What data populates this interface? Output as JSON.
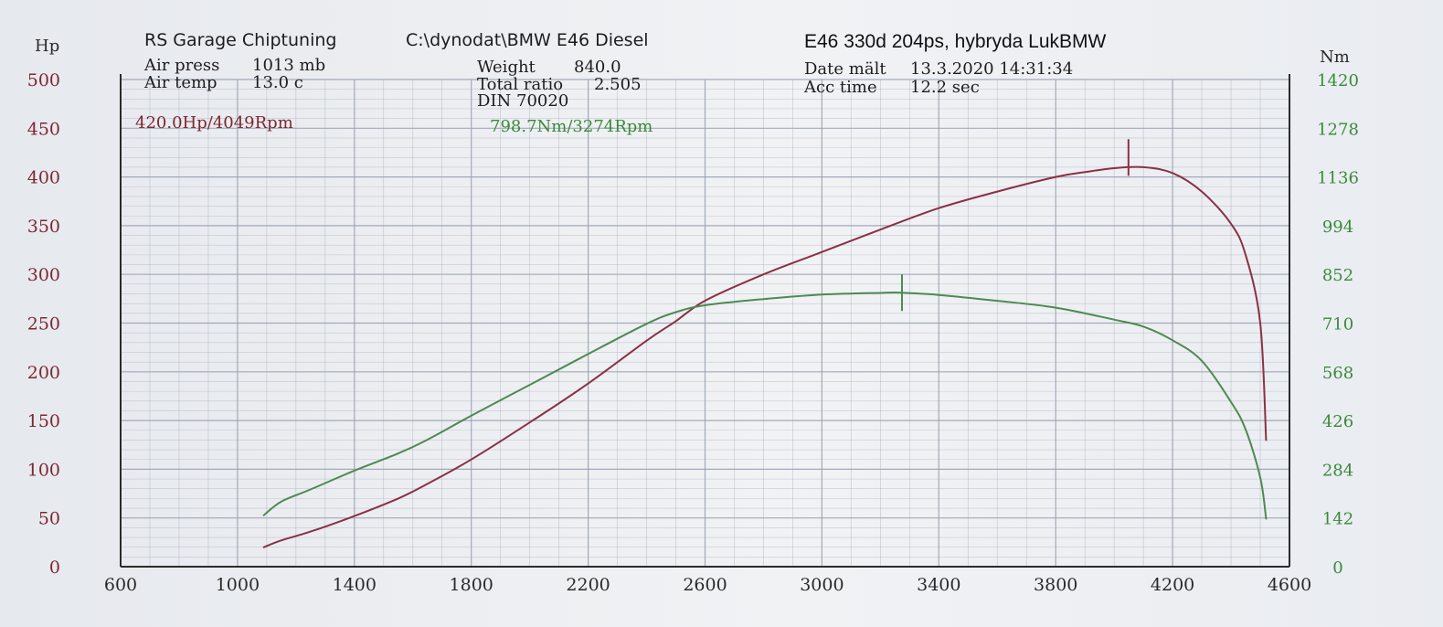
{
  "header": {
    "shop": "RS Garage Chiptuning",
    "file_path": "C:\\dynodat\\BMW E46 Diesel",
    "title": "E46 330d 204ps, hybryda LukBMW",
    "air_press_label": "Air press",
    "air_press_value": "1013 mb",
    "air_temp_label": "Air temp",
    "air_temp_value": "13.0 c",
    "weight_label": "Weight",
    "weight_value": "840.0",
    "total_ratio_label": "Total ratio",
    "total_ratio_value": "2.505",
    "din": "DIN 70020",
    "date_label": "Date mält",
    "date_value": "13.3.2020 14:31:34",
    "acc_time_label": "Acc time",
    "acc_time_value": "12.2 sec"
  },
  "peaks": {
    "power": "420.0Hp/4049Rpm",
    "torque": "798.7Nm/3274Rpm"
  },
  "colors": {
    "power": "#8a3145",
    "torque": "#4e8a52",
    "grid": "#9aa3b2",
    "axis": "#2b2b2b"
  },
  "chart_data": {
    "type": "line",
    "xlabel": "",
    "left_unit": "Hp",
    "right_unit": "Nm",
    "xlim": [
      600,
      4600
    ],
    "ylim_left": [
      0,
      500
    ],
    "ylim_right": [
      0,
      1420
    ],
    "x_ticks": [
      "600",
      "1000",
      "1400",
      "1800",
      "2200",
      "2600",
      "3000",
      "3400",
      "3800",
      "4200",
      "4600"
    ],
    "y_left_ticks": [
      "0",
      "50",
      "100",
      "150",
      "200",
      "250",
      "300",
      "350",
      "400",
      "450",
      "500"
    ],
    "y_right_ticks": [
      "0",
      "142",
      "284",
      "426",
      "568",
      "710",
      "852",
      "994",
      "1136",
      "1278",
      "1420"
    ],
    "grid": true,
    "series": [
      {
        "name": "",
        "axis": "left",
        "unit": "Hp",
        "peak_marker": [
          4049,
          420
        ],
        "points": [
          [
            1090,
            20
          ],
          [
            1150,
            27
          ],
          [
            1250,
            36
          ],
          [
            1400,
            52
          ],
          [
            1550,
            70
          ],
          [
            1650,
            85
          ],
          [
            1800,
            110
          ],
          [
            2000,
            148
          ],
          [
            2200,
            188
          ],
          [
            2400,
            232
          ],
          [
            2500,
            252
          ],
          [
            2600,
            273
          ],
          [
            2800,
            300
          ],
          [
            3000,
            323
          ],
          [
            3200,
            346
          ],
          [
            3400,
            368
          ],
          [
            3600,
            385
          ],
          [
            3800,
            400
          ],
          [
            3900,
            405
          ],
          [
            4000,
            409
          ],
          [
            4100,
            410
          ],
          [
            4200,
            404
          ],
          [
            4300,
            385
          ],
          [
            4400,
            352
          ],
          [
            4450,
            320
          ],
          [
            4500,
            250
          ],
          [
            4520,
            130
          ]
        ]
      },
      {
        "name": "",
        "axis": "right",
        "unit": "Nm",
        "peak_marker": [
          3274,
          798.7
        ],
        "points": [
          [
            1090,
            150
          ],
          [
            1150,
            190
          ],
          [
            1250,
            225
          ],
          [
            1400,
            280
          ],
          [
            1550,
            330
          ],
          [
            1650,
            370
          ],
          [
            1800,
            440
          ],
          [
            2000,
            530
          ],
          [
            2200,
            620
          ],
          [
            2400,
            708
          ],
          [
            2500,
            742
          ],
          [
            2600,
            762
          ],
          [
            2800,
            780
          ],
          [
            3000,
            793
          ],
          [
            3200,
            798
          ],
          [
            3274,
            798.7
          ],
          [
            3400,
            792
          ],
          [
            3600,
            775
          ],
          [
            3800,
            755
          ],
          [
            4000,
            720
          ],
          [
            4100,
            700
          ],
          [
            4200,
            660
          ],
          [
            4300,
            600
          ],
          [
            4400,
            480
          ],
          [
            4450,
            400
          ],
          [
            4500,
            260
          ],
          [
            4520,
            140
          ]
        ]
      }
    ]
  }
}
